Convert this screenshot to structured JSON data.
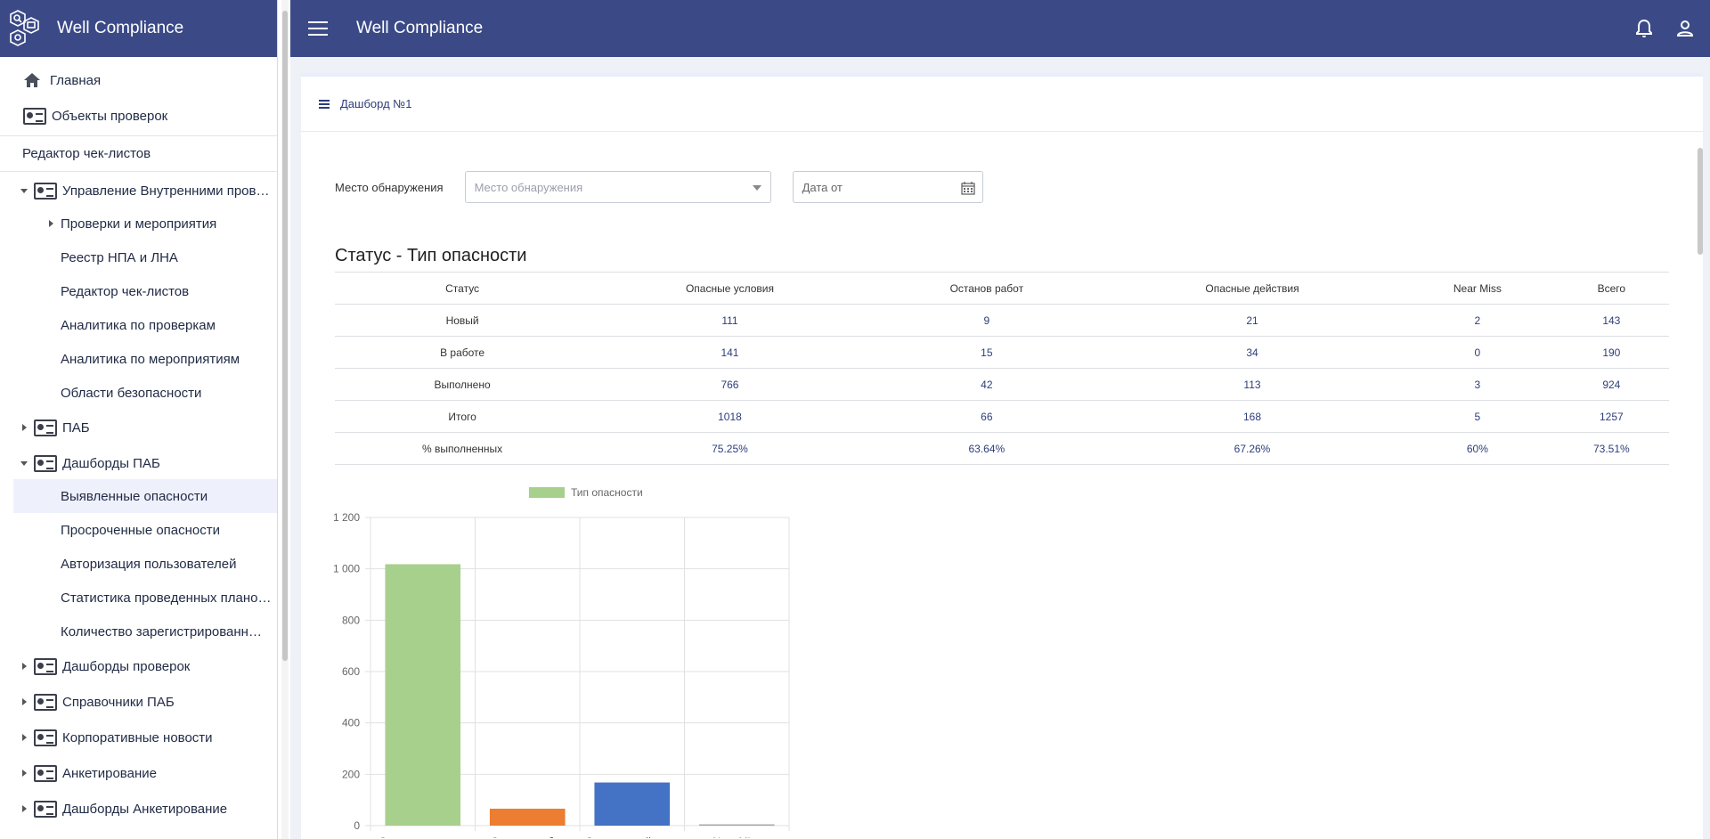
{
  "app": {
    "title": "Well Compliance"
  },
  "sidebar": {
    "items": [
      {
        "label": "Главная"
      },
      {
        "label": "Объекты проверок"
      },
      {
        "label": "Редактор чек-листов"
      },
      {
        "label": "Управление Внутренними пров…"
      },
      {
        "label": "Проверки и мероприятия"
      },
      {
        "label": "Реестр НПА и ЛНА"
      },
      {
        "label": "Редактор чек-листов"
      },
      {
        "label": "Аналитика по проверкам"
      },
      {
        "label": "Аналитика по мероприятиям"
      },
      {
        "label": "Области безопасности"
      },
      {
        "label": "ПАБ"
      },
      {
        "label": "Дашборды ПАБ"
      },
      {
        "label": "Выявленные опасности"
      },
      {
        "label": "Просроченные опасности"
      },
      {
        "label": "Авторизация пользователей"
      },
      {
        "label": "Статистика проведенных плано…"
      },
      {
        "label": "Количество зарегистрированн…"
      },
      {
        "label": "Дашборды проверок"
      },
      {
        "label": "Справочники ПАБ"
      },
      {
        "label": "Корпоративные новости"
      },
      {
        "label": "Анкетирование"
      },
      {
        "label": "Дашборды Анкетирование"
      }
    ]
  },
  "header": {
    "title": "Well Compliance"
  },
  "page": {
    "breadcrumb": "Дашборд №1",
    "filters": {
      "location_label": "Место обнаружения",
      "location_placeholder": "Место обнаружения",
      "date_from_placeholder": "Дата от"
    },
    "section_title": "Статус - Тип опасности",
    "table": {
      "headers": [
        "Статус",
        "Опасные условия",
        "Останов работ",
        "Опасные действия",
        "Near Miss",
        "Всего"
      ],
      "rows": [
        [
          "Новый",
          "111",
          "9",
          "21",
          "2",
          "143"
        ],
        [
          "В работе",
          "141",
          "15",
          "34",
          "0",
          "190"
        ],
        [
          "Выполнено",
          "766",
          "42",
          "113",
          "3",
          "924"
        ],
        [
          "Итого",
          "1018",
          "66",
          "168",
          "5",
          "1257"
        ],
        [
          "% выполненных",
          "75.25%",
          "63.64%",
          "67.26%",
          "60%",
          "73.51%"
        ]
      ]
    }
  },
  "colors": {
    "accent": "#3b4a87",
    "green": "#a8d08d",
    "orange": "#ed7d31",
    "blue": "#4472c4",
    "gray": "#a5a5a5"
  },
  "chart_data": {
    "type": "bar",
    "legend": "Тип опасности",
    "categories": [
      "Опасные условия",
      "Останов работ",
      "Опасные действия",
      "Near Miss"
    ],
    "values": [
      1018,
      66,
      168,
      5
    ],
    "bar_colors": [
      "#a8d08d",
      "#ed7d31",
      "#4472c4",
      "#a5a5a5"
    ],
    "ylim": [
      0,
      1200
    ],
    "yticks": [
      "0",
      "200",
      "400",
      "600",
      "800",
      "1 000",
      "1 200"
    ],
    "ytick_values": [
      0,
      200,
      400,
      600,
      800,
      1000,
      1200
    ],
    "grid": true,
    "legend_position": "top"
  }
}
